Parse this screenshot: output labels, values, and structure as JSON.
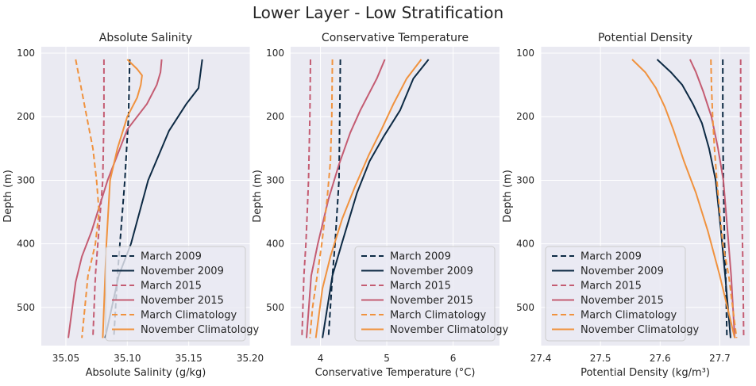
{
  "figure": {
    "suptitle": "Lower Layer - Low Stratification"
  },
  "legend_entries": [
    {
      "label": "March 2009",
      "color": "#0d2a44",
      "dash": true
    },
    {
      "label": "November 2009",
      "color": "#0d2a44",
      "dash": false
    },
    {
      "label": "March 2015",
      "color": "#c45c72",
      "dash": true
    },
    {
      "label": "November 2015",
      "color": "#c45c72",
      "dash": false
    },
    {
      "label": "March Climatology",
      "color": "#f0923e",
      "dash": true
    },
    {
      "label": "November Climatology",
      "color": "#f0923e",
      "dash": false
    }
  ],
  "chart_data": [
    {
      "type": "line",
      "title": "Absolute Salinity",
      "xlabel": "Absolute Salinity (g/kg)",
      "ylabel": "Depth (m)",
      "xlim": [
        35.03,
        35.2
      ],
      "ylim": [
        560,
        90
      ],
      "xticks": [
        "35.05",
        "35.10",
        "35.15",
        "35.20"
      ],
      "xtick_values": [
        35.05,
        35.1,
        35.15,
        35.2
      ],
      "yticks": [
        "100",
        "200",
        "300",
        "400",
        "500"
      ],
      "ytick_values": [
        100,
        200,
        300,
        400,
        500
      ],
      "grid": true,
      "legend_position": "lower-right",
      "series": [
        {
          "name": "March 2009",
          "x": [
            35.102,
            35.101,
            35.098,
            35.096,
            35.094,
            35.092,
            35.089
          ],
          "y": [
            110,
            200,
            300,
            350,
            400,
            450,
            548
          ]
        },
        {
          "name": "November 2009",
          "x": [
            35.161,
            35.158,
            35.148,
            35.134,
            35.117,
            35.103,
            35.093,
            35.082
          ],
          "y": [
            110,
            155,
            180,
            222,
            300,
            400,
            450,
            548
          ]
        },
        {
          "name": "March 2015",
          "x": [
            35.081,
            35.081,
            35.08,
            35.078,
            35.076,
            35.074,
            35.072
          ],
          "y": [
            110,
            200,
            300,
            350,
            400,
            450,
            548
          ]
        },
        {
          "name": "November 2015",
          "x": [
            35.128,
            35.127,
            35.124,
            35.116,
            35.1,
            35.084,
            35.071,
            35.063,
            35.058,
            35.052
          ],
          "y": [
            110,
            130,
            150,
            180,
            220,
            300,
            380,
            420,
            460,
            548
          ]
        },
        {
          "name": "March Climatology",
          "x": [
            35.058,
            35.062,
            35.067,
            35.072,
            35.075,
            35.077,
            35.074,
            35.068,
            35.063
          ],
          "y": [
            110,
            150,
            200,
            250,
            300,
            350,
            400,
            450,
            548
          ]
        },
        {
          "name": "November Climatology",
          "x": [
            35.1,
            35.108,
            35.112,
            35.111,
            35.108,
            35.1,
            35.092,
            35.086,
            35.083,
            35.08
          ],
          "y": [
            110,
            125,
            135,
            150,
            170,
            200,
            250,
            300,
            400,
            548
          ]
        }
      ]
    },
    {
      "type": "line",
      "title": "Conservative Temperature",
      "xlabel": "Conservative Temperature (°C)",
      "ylabel": "Depth (m)",
      "xlim": [
        3.55,
        6.7
      ],
      "ylim": [
        560,
        90
      ],
      "xticks": [
        "4",
        "5",
        "6"
      ],
      "xtick_values": [
        4,
        5,
        6
      ],
      "yticks": [
        "100",
        "200",
        "300",
        "400",
        "500"
      ],
      "ytick_values": [
        100,
        200,
        300,
        400,
        500
      ],
      "grid": true,
      "legend_position": "lower-right",
      "series": [
        {
          "name": "March 2009",
          "x": [
            4.3,
            4.29,
            4.28,
            4.25,
            4.22,
            4.18,
            4.12
          ],
          "y": [
            110,
            200,
            300,
            350,
            400,
            450,
            548
          ]
        },
        {
          "name": "November 2009",
          "x": [
            5.63,
            5.4,
            5.2,
            4.96,
            4.74,
            4.55,
            4.32,
            4.18,
            4.03
          ],
          "y": [
            110,
            140,
            190,
            230,
            270,
            320,
            400,
            450,
            548
          ]
        },
        {
          "name": "March 2015",
          "x": [
            3.85,
            3.84,
            3.82,
            3.8,
            3.78,
            3.75,
            3.72
          ],
          "y": [
            110,
            200,
            300,
            350,
            400,
            450,
            548
          ]
        },
        {
          "name": "November 2015",
          "x": [
            4.97,
            4.85,
            4.6,
            4.45,
            4.28,
            4.12,
            3.96,
            3.86,
            3.79
          ],
          "y": [
            110,
            140,
            190,
            225,
            275,
            330,
            400,
            450,
            548
          ]
        },
        {
          "name": "March Climatology",
          "x": [
            4.18,
            4.17,
            4.15,
            4.1,
            4.02,
            3.95,
            3.88,
            3.84
          ],
          "y": [
            110,
            200,
            270,
            330,
            400,
            450,
            500,
            548
          ]
        },
        {
          "name": "November Climatology",
          "x": [
            5.52,
            5.3,
            5.1,
            4.92,
            4.73,
            4.52,
            4.33,
            4.15,
            4.03,
            3.93
          ],
          "y": [
            110,
            140,
            180,
            220,
            260,
            310,
            360,
            420,
            470,
            548
          ]
        }
      ]
    },
    {
      "type": "line",
      "title": "Potential Density",
      "xlabel": "Potential Density (kg/m³)",
      "ylabel": "Depth (m)",
      "xlim": [
        27.4,
        27.75
      ],
      "ylim": [
        560,
        90
      ],
      "xticks": [
        "27.4",
        "27.5",
        "27.6",
        "27.7"
      ],
      "xtick_values": [
        27.4,
        27.5,
        27.6,
        27.7
      ],
      "yticks": [
        "100",
        "200",
        "300",
        "400",
        "500"
      ],
      "ytick_values": [
        100,
        200,
        300,
        400,
        500
      ],
      "grid": true,
      "legend_position": "lower-left",
      "series": [
        {
          "name": "March 2009",
          "x": [
            27.705,
            27.705,
            27.706,
            27.707,
            27.708,
            27.71,
            27.712
          ],
          "y": [
            110,
            200,
            300,
            350,
            400,
            450,
            548
          ]
        },
        {
          "name": "November 2009",
          "x": [
            27.595,
            27.618,
            27.637,
            27.655,
            27.67,
            27.682,
            27.693,
            27.702,
            27.709,
            27.718
          ],
          "y": [
            110,
            130,
            150,
            180,
            210,
            250,
            300,
            380,
            450,
            548
          ]
        },
        {
          "name": "March 2015",
          "x": [
            27.735,
            27.735,
            27.736,
            27.737,
            27.738,
            27.739,
            27.74
          ],
          "y": [
            110,
            200,
            300,
            350,
            400,
            450,
            548
          ]
        },
        {
          "name": "November 2015",
          "x": [
            27.65,
            27.66,
            27.672,
            27.686,
            27.697,
            27.706,
            27.713,
            27.719,
            27.725
          ],
          "y": [
            110,
            130,
            160,
            200,
            250,
            300,
            380,
            450,
            548
          ]
        },
        {
          "name": "March Climatology",
          "x": [
            27.685,
            27.686,
            27.688,
            27.691,
            27.695,
            27.7,
            27.705,
            27.715,
            27.728
          ],
          "y": [
            110,
            150,
            200,
            250,
            300,
            350,
            400,
            450,
            548
          ]
        },
        {
          "name": "November Climatology",
          "x": [
            27.553,
            27.575,
            27.593,
            27.608,
            27.622,
            27.64,
            27.66,
            27.68,
            27.7,
            27.725
          ],
          "y": [
            110,
            130,
            155,
            185,
            220,
            270,
            320,
            380,
            450,
            548
          ]
        }
      ]
    }
  ]
}
